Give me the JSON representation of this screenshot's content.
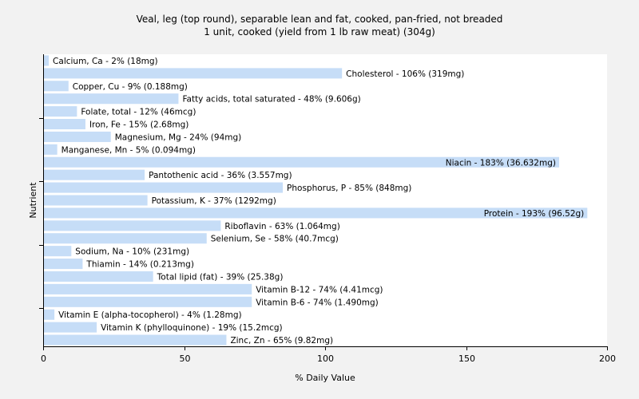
{
  "chart_data": {
    "type": "bar",
    "orientation": "horizontal",
    "title": "Veal, leg (top round), separable lean and fat, cooked, pan-fried, not breaded",
    "subtitle": "1 unit, cooked (yield from 1 lb raw meat) (304g)",
    "xlabel": "% Daily Value",
    "ylabel": "Nutrient",
    "xlim": [
      0,
      200
    ],
    "xticks": [
      0,
      50,
      100,
      150,
      200
    ],
    "grid": false,
    "bar_color": "#c6ddf7",
    "background_color": "#f2f2f2",
    "plot_background_color": "#ffffff",
    "categories": [
      "Calcium, Ca",
      "Cholesterol",
      "Copper, Cu",
      "Fatty acids, total saturated",
      "Folate, total",
      "Iron, Fe",
      "Magnesium, Mg",
      "Manganese, Mn",
      "Niacin",
      "Pantothenic acid",
      "Phosphorus, P",
      "Potassium, K",
      "Protein",
      "Riboflavin",
      "Selenium, Se",
      "Sodium, Na",
      "Thiamin",
      "Total lipid (fat)",
      "Vitamin B-12",
      "Vitamin B-6",
      "Vitamin E (alpha-tocopherol)",
      "Vitamin K (phylloquinone)",
      "Zinc, Zn"
    ],
    "values": [
      2,
      106,
      9,
      48,
      12,
      15,
      24,
      5,
      183,
      36,
      85,
      37,
      193,
      63,
      58,
      10,
      14,
      39,
      74,
      74,
      4,
      19,
      65
    ],
    "labels": [
      "Calcium, Ca - 2% (18mg)",
      "Cholesterol - 106% (319mg)",
      "Copper, Cu - 9% (0.188mg)",
      "Fatty acids, total saturated - 48% (9.606g)",
      "Folate, total - 12% (46mcg)",
      "Iron, Fe - 15% (2.68mg)",
      "Magnesium, Mg - 24% (94mg)",
      "Manganese, Mn - 5% (0.094mg)",
      "Niacin - 183% (36.632mg)",
      "Pantothenic acid - 36% (3.557mg)",
      "Phosphorus, P - 85% (848mg)",
      "Potassium, K - 37% (1292mg)",
      "Protein - 193% (96.52g)",
      "Riboflavin - 63% (1.064mg)",
      "Selenium, Se - 58% (40.7mcg)",
      "Sodium, Na - 10% (231mg)",
      "Thiamin - 14% (0.213mg)",
      "Total lipid (fat) - 39% (25.38g)",
      "Vitamin B-12 - 74% (4.41mcg)",
      "Vitamin B-6 - 74% (1.490mg)",
      "Vitamin E (alpha-tocopherol) - 4% (1.28mg)",
      "Vitamin K (phylloquinone) - 19% (15.2mcg)",
      "Zinc, Zn - 65% (9.82mg)"
    ]
  }
}
